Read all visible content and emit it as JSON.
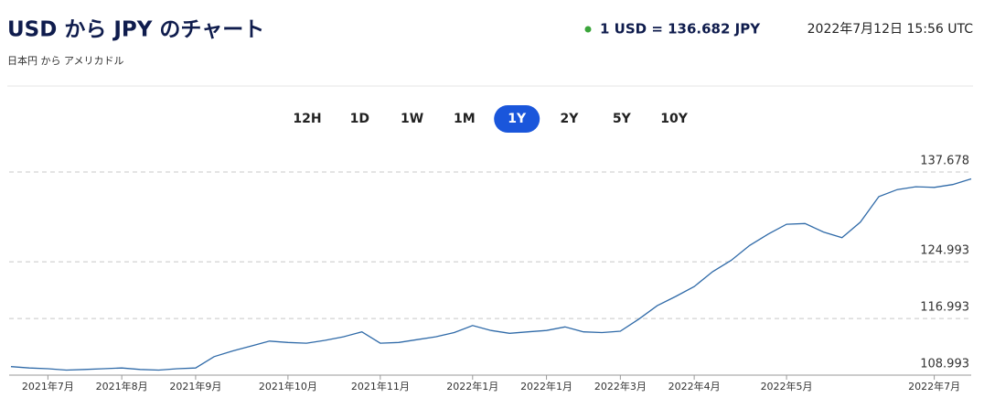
{
  "header": {
    "title": "USD から JPY のチャート",
    "subtitle": "日本円 から アメリカドル",
    "rate": "1 USD = 136.682 JPY",
    "timestamp": "2022年7月12日 15:56 UTC"
  },
  "ranges": {
    "options": [
      "12H",
      "1D",
      "1W",
      "1M",
      "1Y",
      "2Y",
      "5Y",
      "10Y"
    ],
    "selected": 4
  },
  "chart_data": {
    "type": "line",
    "categories": [
      null,
      null,
      "2021年7月",
      null,
      null,
      null,
      "2021年8月",
      null,
      null,
      null,
      "2021年9月",
      null,
      null,
      null,
      null,
      "2021年10月",
      null,
      null,
      null,
      null,
      "2021年11月",
      null,
      null,
      null,
      null,
      "2022年1月",
      null,
      null,
      null,
      "2022年1月",
      null,
      null,
      null,
      "2022年3月",
      null,
      null,
      null,
      "2022年4月",
      null,
      null,
      null,
      null,
      "2022年5月",
      null,
      null,
      null,
      null,
      null,
      null,
      null,
      "2022年7月",
      null,
      null
    ],
    "values": [
      110.2,
      110.0,
      109.9,
      109.7,
      109.8,
      109.9,
      110.0,
      109.8,
      109.7,
      109.9,
      110.0,
      111.6,
      112.4,
      113.1,
      113.8,
      113.6,
      113.5,
      113.9,
      114.4,
      115.1,
      113.5,
      113.6,
      114.0,
      114.4,
      115.0,
      116.0,
      115.3,
      114.9,
      115.1,
      115.3,
      115.8,
      115.1,
      115.0,
      115.2,
      116.9,
      118.8,
      120.1,
      121.5,
      123.6,
      125.2,
      127.3,
      128.9,
      130.3,
      130.4,
      129.2,
      128.4,
      130.6,
      134.2,
      135.2,
      135.6,
      135.5,
      135.9,
      136.7
    ],
    "color": "#2f6aa8",
    "ylim": [
      108.993,
      140
    ],
    "yticks": [
      108.993,
      116.993,
      124.993,
      137.678
    ],
    "grid": true
  }
}
